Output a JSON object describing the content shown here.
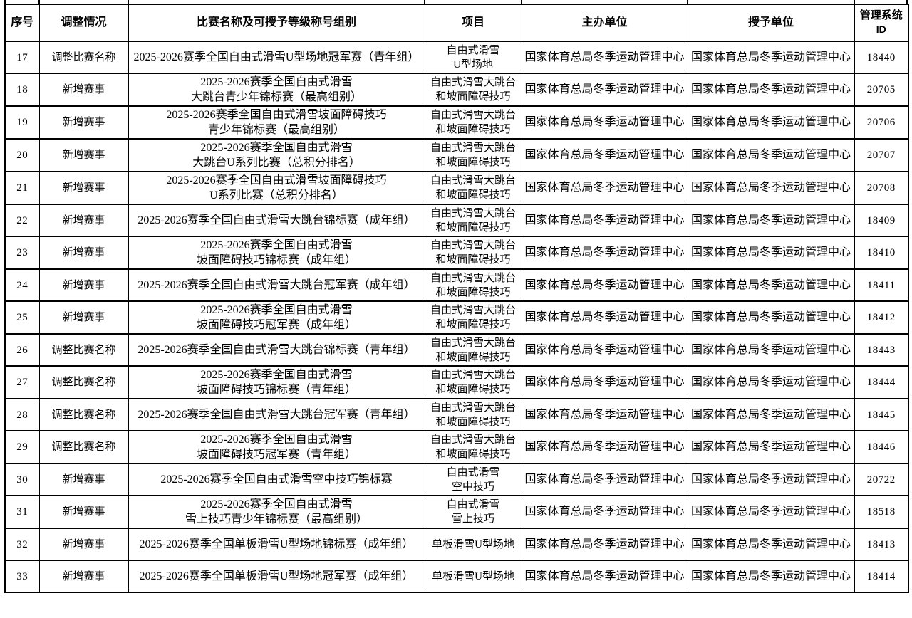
{
  "document": {
    "columns": [
      "序号",
      "调整情况",
      "比赛名称及可授予等级称号组别",
      "项目",
      "主办单位",
      "授予单位"
    ],
    "id_column": {
      "line1": "管理系统",
      "line2": "ID"
    },
    "rows": [
      {
        "no": "17",
        "status": "调整比赛名称",
        "name": [
          "2025-2026赛季全国自由式滑雪U型场地冠军赛（青年组）"
        ],
        "event": [
          "自由式滑雪",
          "U型场地"
        ],
        "organizer": "国家体育总局冬季运动管理中心",
        "grantor": "国家体育总局冬季运动管理中心",
        "id": "18440"
      },
      {
        "no": "18",
        "status": "新增赛事",
        "name": [
          "2025-2026赛季全国自由式滑雪",
          "大跳台青少年锦标赛（最高组别）"
        ],
        "event": [
          "自由式滑雪大跳台",
          "和坡面障碍技巧"
        ],
        "organizer": "国家体育总局冬季运动管理中心",
        "grantor": "国家体育总局冬季运动管理中心",
        "id": "20705"
      },
      {
        "no": "19",
        "status": "新增赛事",
        "name": [
          "2025-2026赛季全国自由式滑雪坡面障碍技巧",
          "青少年锦标赛（最高组别）"
        ],
        "event": [
          "自由式滑雪大跳台",
          "和坡面障碍技巧"
        ],
        "organizer": "国家体育总局冬季运动管理中心",
        "grantor": "国家体育总局冬季运动管理中心",
        "id": "20706"
      },
      {
        "no": "20",
        "status": "新增赛事",
        "name": [
          "2025-2026赛季全国自由式滑雪",
          "大跳台U系列比赛（总积分排名）"
        ],
        "event": [
          "自由式滑雪大跳台",
          "和坡面障碍技巧"
        ],
        "organizer": "国家体育总局冬季运动管理中心",
        "grantor": "国家体育总局冬季运动管理中心",
        "id": "20707"
      },
      {
        "no": "21",
        "status": "新增赛事",
        "name": [
          "2025-2026赛季全国自由式滑雪坡面障碍技巧",
          "U系列比赛（总积分排名）"
        ],
        "event": [
          "自由式滑雪大跳台",
          "和坡面障碍技巧"
        ],
        "organizer": "国家体育总局冬季运动管理中心",
        "grantor": "国家体育总局冬季运动管理中心",
        "id": "20708"
      },
      {
        "no": "22",
        "status": "新增赛事",
        "name": [
          "2025-2026赛季全国自由式滑雪大跳台锦标赛（成年组）"
        ],
        "event": [
          "自由式滑雪大跳台",
          "和坡面障碍技巧"
        ],
        "organizer": "国家体育总局冬季运动管理中心",
        "grantor": "国家体育总局冬季运动管理中心",
        "id": "18409"
      },
      {
        "no": "23",
        "status": "新增赛事",
        "name": [
          "2025-2026赛季全国自由式滑雪",
          "坡面障碍技巧锦标赛（成年组）"
        ],
        "event": [
          "自由式滑雪大跳台",
          "和坡面障碍技巧"
        ],
        "organizer": "国家体育总局冬季运动管理中心",
        "grantor": "国家体育总局冬季运动管理中心",
        "id": "18410"
      },
      {
        "no": "24",
        "status": "新增赛事",
        "name": [
          "2025-2026赛季全国自由式滑雪大跳台冠军赛（成年组）"
        ],
        "event": [
          "自由式滑雪大跳台",
          "和坡面障碍技巧"
        ],
        "organizer": "国家体育总局冬季运动管理中心",
        "grantor": "国家体育总局冬季运动管理中心",
        "id": "18411"
      },
      {
        "no": "25",
        "status": "新增赛事",
        "name": [
          "2025-2026赛季全国自由式滑雪",
          "坡面障碍技巧冠军赛（成年组）"
        ],
        "event": [
          "自由式滑雪大跳台",
          "和坡面障碍技巧"
        ],
        "organizer": "国家体育总局冬季运动管理中心",
        "grantor": "国家体育总局冬季运动管理中心",
        "id": "18412"
      },
      {
        "no": "26",
        "status": "调整比赛名称",
        "name": [
          "2025-2026赛季全国自由式滑雪大跳台锦标赛（青年组）"
        ],
        "event": [
          "自由式滑雪大跳台",
          "和坡面障碍技巧"
        ],
        "organizer": "国家体育总局冬季运动管理中心",
        "grantor": "国家体育总局冬季运动管理中心",
        "id": "18443"
      },
      {
        "no": "27",
        "status": "调整比赛名称",
        "name": [
          "2025-2026赛季全国自由式滑雪",
          "坡面障碍技巧锦标赛（青年组）"
        ],
        "event": [
          "自由式滑雪大跳台",
          "和坡面障碍技巧"
        ],
        "organizer": "国家体育总局冬季运动管理中心",
        "grantor": "国家体育总局冬季运动管理中心",
        "id": "18444"
      },
      {
        "no": "28",
        "status": "调整比赛名称",
        "name": [
          "2025-2026赛季全国自由式滑雪大跳台冠军赛（青年组）"
        ],
        "event": [
          "自由式滑雪大跳台",
          "和坡面障碍技巧"
        ],
        "organizer": "国家体育总局冬季运动管理中心",
        "grantor": "国家体育总局冬季运动管理中心",
        "id": "18445"
      },
      {
        "no": "29",
        "status": "调整比赛名称",
        "name": [
          "2025-2026赛季全国自由式滑雪",
          "坡面障碍技巧冠军赛（青年组）"
        ],
        "event": [
          "自由式滑雪大跳台",
          "和坡面障碍技巧"
        ],
        "organizer": "国家体育总局冬季运动管理中心",
        "grantor": "国家体育总局冬季运动管理中心",
        "id": "18446"
      },
      {
        "no": "30",
        "status": "新增赛事",
        "name": [
          "2025-2026赛季全国自由式滑雪空中技巧锦标赛"
        ],
        "event": [
          "自由式滑雪",
          "空中技巧"
        ],
        "organizer": "国家体育总局冬季运动管理中心",
        "grantor": "国家体育总局冬季运动管理中心",
        "id": "20722"
      },
      {
        "no": "31",
        "status": "新增赛事",
        "name": [
          "2025-2026赛季全国自由式滑雪",
          "雪上技巧青少年锦标赛（最高组别）"
        ],
        "event": [
          "自由式滑雪",
          "雪上技巧"
        ],
        "organizer": "国家体育总局冬季运动管理中心",
        "grantor": "国家体育总局冬季运动管理中心",
        "id": "18518"
      },
      {
        "no": "32",
        "status": "新增赛事",
        "name": [
          "2025-2026赛季全国单板滑雪U型场地锦标赛（成年组）"
        ],
        "event": [
          "单板滑雪U型场地"
        ],
        "organizer": "国家体育总局冬季运动管理中心",
        "grantor": "国家体育总局冬季运动管理中心",
        "id": "18413"
      },
      {
        "no": "33",
        "status": "新增赛事",
        "name": [
          "2025-2026赛季全国单板滑雪U型场地冠军赛（成年组）"
        ],
        "event": [
          "单板滑雪U型场地"
        ],
        "organizer": "国家体育总局冬季运动管理中心",
        "grantor": "国家体育总局冬季运动管理中心",
        "id": "18414"
      }
    ]
  }
}
